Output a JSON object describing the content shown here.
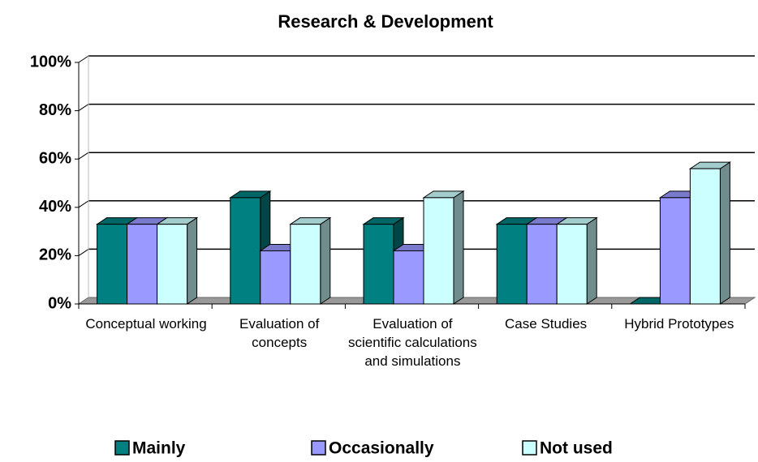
{
  "chart_data": {
    "type": "bar3d",
    "title": "Research & Development",
    "categories": [
      "Conceptual working",
      "Evaluation of concepts",
      "Evaluation of scientific calculations and simulations",
      "Case Studies",
      "Hybrid Prototypes"
    ],
    "series": [
      {
        "name": "Mainly",
        "color": "#008080",
        "values": [
          33,
          44,
          33,
          33,
          0
        ]
      },
      {
        "name": "Occasionally",
        "color": "#9999ff",
        "values": [
          33,
          22,
          22,
          33,
          44
        ]
      },
      {
        "name": "Not used",
        "color": "#ccffff",
        "values": [
          33,
          33,
          44,
          33,
          56
        ]
      }
    ],
    "ylim": [
      0,
      100
    ],
    "yticks": [
      {
        "value": 0,
        "label": "0%"
      },
      {
        "value": 20,
        "label": "20%"
      },
      {
        "value": 40,
        "label": "40%"
      },
      {
        "value": 60,
        "label": "60%"
      },
      {
        "value": 80,
        "label": "80%"
      },
      {
        "value": 100,
        "label": "100%"
      }
    ],
    "grid": true,
    "legend": "bottom"
  }
}
